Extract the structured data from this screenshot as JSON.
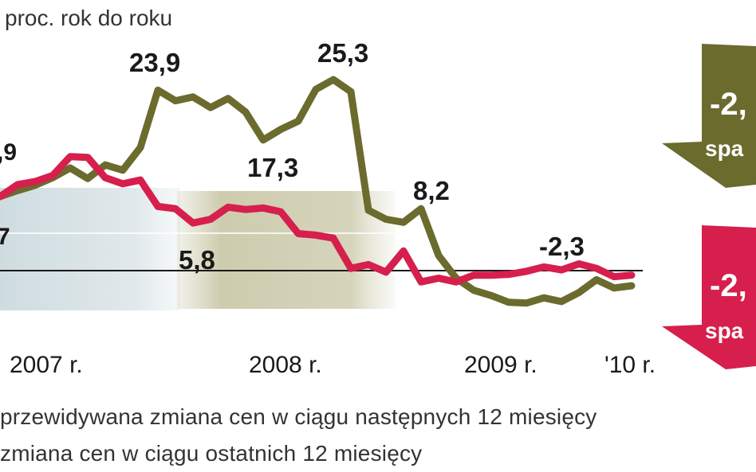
{
  "chart_data": {
    "type": "line",
    "unit_label": "proc. rok do roku",
    "x_labels": [
      "2007 r.",
      "2008 r.",
      "2009 r.",
      "'10 r."
    ],
    "ylim": [
      -6,
      31
    ],
    "series": [
      {
        "name": "przewidywana zmiana cen w ciągu następnych 12 miesięcy",
        "color": "#6b6b2e",
        "values": [
          9.8,
          10.6,
          11.3,
          12.3,
          13.6,
          12.2,
          14.0,
          13.3,
          16.3,
          23.9,
          22.5,
          23.0,
          21.6,
          22.8,
          21.0,
          17.3,
          18.7,
          19.8,
          24.0,
          25.3,
          23.7,
          8.0,
          6.8,
          6.4,
          8.2,
          2.0,
          -1.0,
          -2.6,
          -3.3,
          -4.2,
          -4.3,
          -3.6,
          -4.1,
          -2.9,
          -1.2,
          -2.3,
          -2.0
        ]
      },
      {
        "name": "zmiana cen w ciągu ostatnich 12 miesięcy",
        "color": "#d61f4d",
        "values": [
          9.8,
          11.4,
          11.8,
          12.6,
          15.1,
          15.0,
          12.3,
          11.5,
          12.0,
          8.5,
          8.2,
          6.3,
          6.8,
          8.4,
          8.1,
          8.3,
          7.8,
          4.9,
          4.7,
          4.3,
          0.3,
          0.8,
          -0.2,
          2.6,
          -1.5,
          -1.0,
          -1.5,
          -0.6,
          -0.6,
          -0.5,
          -0.1,
          0.5,
          0.1,
          0.9,
          0.3,
          -0.8,
          -0.6
        ]
      }
    ],
    "annotations": {
      "top_left": ",9",
      "mid_left": "7",
      "green_peak_2007": "23,9",
      "green_peak_2008": "25,3",
      "green_low_2008": "17,3",
      "green_drop_2008": "8,2",
      "red_low_2008": "5,8",
      "green_2010": "-2,3"
    },
    "callouts": [
      {
        "value": "-2,",
        "word": "spa",
        "color": "#6b6b2e"
      },
      {
        "value": "-2,",
        "word": "spa",
        "color": "#d61f4d"
      }
    ],
    "legend": [
      "przewidywana zmiana cen w ciągu następnych 12 miesięcy",
      "zmiana cen w ciągu ostatnich 12 miesięcy"
    ]
  }
}
